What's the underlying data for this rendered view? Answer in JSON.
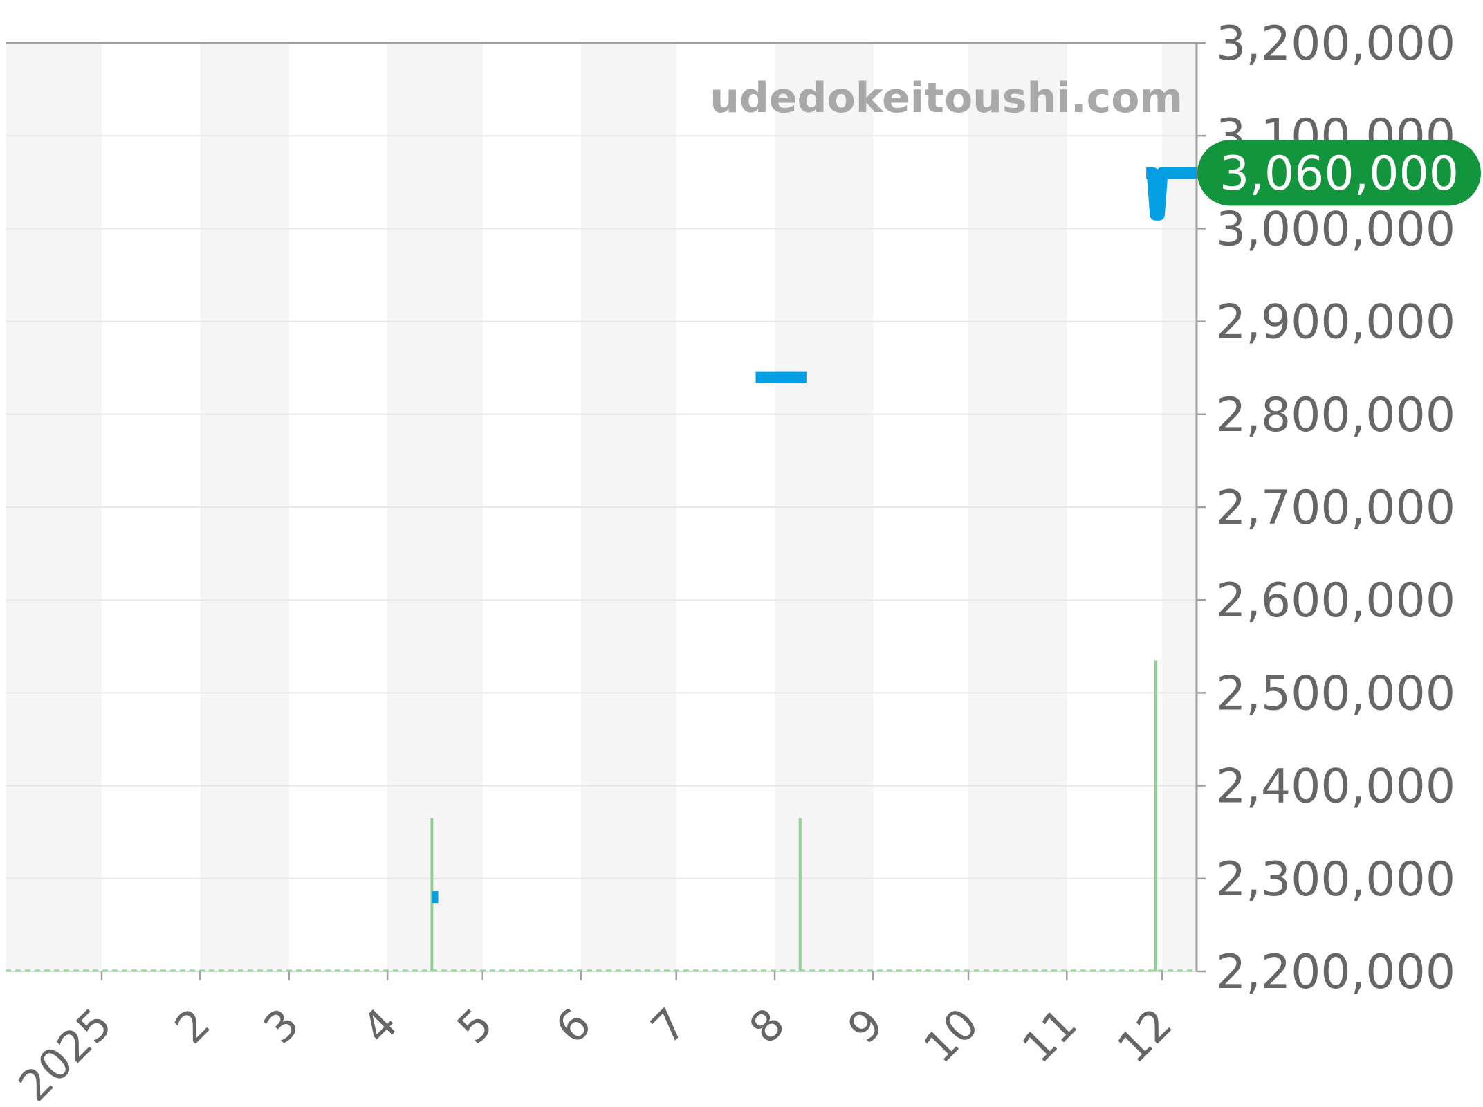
{
  "watermark": "udedokeitoushi.com",
  "last_price_label": "3,060,000",
  "colors": {
    "price_line": "#049fe3",
    "volume": "#8fd28f",
    "last_price_bg": "#12953c",
    "last_price_text": "#ffffff",
    "axis_text": "#666666",
    "watermark_text": "#a8a8a8",
    "month_band": "#f5f5f5",
    "gridline": "#e8e8e8",
    "axis_border": "#a0a0a0",
    "baseline": "#cccccc"
  },
  "chart_data": {
    "type": "line",
    "title": "",
    "legend": "none",
    "grid": true,
    "x_axis": {
      "labels": [
        "2025",
        "2",
        "3",
        "4",
        "5",
        "6",
        "7",
        "8",
        "9",
        "10",
        "11",
        "12"
      ],
      "range": [
        "2024-12-02",
        "2025-12-12"
      ],
      "band_style": "alternating light-gray month bands (even months shaded)"
    },
    "y_axis": {
      "tick_labels": [
        "3,200,000",
        "3,100,000",
        "3,000,000",
        "2,900,000",
        "2,800,000",
        "2,700,000",
        "2,600,000",
        "2,500,000",
        "2,400,000",
        "2,300,000",
        "2,200,000"
      ],
      "min": 2200000,
      "max": 3200000,
      "tick_interval": 100000,
      "position": "right"
    },
    "price_series": {
      "name": "price",
      "unit": "JPY",
      "last_value": 3060000,
      "segments": [
        {
          "points": [
            [
              "2025-04-15",
              2280000
            ],
            [
              "2025-04-17",
              2280000
            ]
          ]
        },
        {
          "points": [
            [
              "2025-07-26",
              2840000
            ],
            [
              "2025-08-11",
              2840000
            ]
          ]
        },
        {
          "points": [
            [
              "2025-11-26",
              3060000
            ],
            [
              "2025-11-28",
              3060000
            ],
            [
              "2025-11-29",
              3015000
            ],
            [
              "2025-11-30",
              3015000
            ],
            [
              "2025-12-01",
              3060000
            ],
            [
              "2025-12-12",
              3060000
            ]
          ]
        }
      ]
    },
    "volume_spikes": [
      {
        "date": "2025-04-15",
        "peak_on_price_axis": 2365000
      },
      {
        "date": "2025-08-09",
        "peak_on_price_axis": 2365000
      },
      {
        "date": "2025-11-29",
        "peak_on_price_axis": 2535000
      }
    ]
  }
}
